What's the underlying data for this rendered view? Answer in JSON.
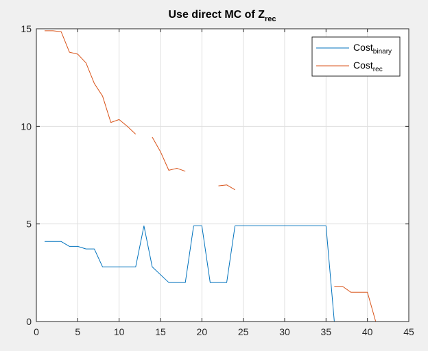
{
  "chart_data": {
    "type": "line",
    "title": {
      "main": "Use direct MC of Z",
      "subscript": "rec"
    },
    "xlabel": "",
    "ylabel": "",
    "xlim": [
      0,
      45
    ],
    "ylim": [
      0,
      15
    ],
    "xticks": [
      0,
      5,
      10,
      15,
      20,
      25,
      30,
      35,
      40,
      45
    ],
    "yticks": [
      0,
      5,
      10,
      15
    ],
    "grid": true,
    "legend": {
      "placement": "top-right",
      "entries": [
        {
          "base": "Cost",
          "subscript": "binary"
        },
        {
          "base": "Cost",
          "subscript": "rec"
        }
      ]
    },
    "series": [
      {
        "legend_index": 0,
        "color": "#0072BD",
        "points": [
          [
            1,
            4.1
          ],
          [
            2,
            4.1
          ],
          [
            3,
            4.1
          ],
          [
            4,
            3.85
          ],
          [
            5,
            3.85
          ],
          [
            6,
            3.72
          ],
          [
            7,
            3.72
          ],
          [
            8,
            2.8
          ],
          [
            9,
            2.8
          ],
          [
            10,
            2.8
          ],
          [
            11,
            2.8
          ],
          [
            12,
            2.8
          ],
          [
            13,
            4.9
          ],
          [
            14,
            2.8
          ],
          [
            15,
            2.4
          ],
          [
            16,
            2.0
          ],
          [
            17,
            2.0
          ],
          [
            18,
            2.0
          ],
          [
            19,
            4.9
          ],
          [
            20,
            4.9
          ],
          [
            21,
            2.0
          ],
          [
            22,
            2.0
          ],
          [
            23,
            2.0
          ],
          [
            24,
            4.9
          ],
          [
            25,
            4.9
          ],
          [
            26,
            4.9
          ],
          [
            27,
            4.9
          ],
          [
            28,
            4.9
          ],
          [
            29,
            4.9
          ],
          [
            30,
            4.9
          ],
          [
            31,
            4.9
          ],
          [
            32,
            4.9
          ],
          [
            33,
            4.9
          ],
          [
            34,
            4.9
          ],
          [
            35,
            4.9
          ],
          [
            36,
            0
          ],
          [
            37,
            0
          ],
          [
            38,
            0
          ],
          [
            39,
            0
          ],
          [
            40,
            0
          ],
          [
            41,
            0
          ],
          [
            42,
            0
          ]
        ]
      },
      {
        "legend_index": 1,
        "color": "#D95319",
        "points": [
          [
            1,
            14.9
          ],
          [
            2,
            14.9
          ],
          [
            3,
            14.85
          ],
          [
            4,
            13.8
          ],
          [
            5,
            13.7
          ],
          [
            6,
            13.25
          ],
          [
            7,
            12.2
          ],
          [
            8,
            11.55
          ],
          [
            9,
            10.2
          ],
          [
            10,
            10.35
          ],
          [
            11,
            10.0
          ],
          [
            12,
            9.6
          ],
          [
            13,
            null
          ],
          [
            14,
            9.45
          ],
          [
            15,
            8.7
          ],
          [
            16,
            7.75
          ],
          [
            17,
            7.85
          ],
          [
            18,
            7.7
          ],
          [
            19,
            null
          ],
          [
            20,
            null
          ],
          [
            21,
            null
          ],
          [
            22,
            6.95
          ],
          [
            23,
            7.0
          ],
          [
            24,
            6.75
          ],
          [
            25,
            null
          ],
          [
            26,
            null
          ],
          [
            27,
            null
          ],
          [
            28,
            null
          ],
          [
            29,
            null
          ],
          [
            30,
            null
          ],
          [
            31,
            null
          ],
          [
            32,
            null
          ],
          [
            33,
            null
          ],
          [
            34,
            null
          ],
          [
            35,
            null
          ],
          [
            36,
            1.8
          ],
          [
            37,
            1.8
          ],
          [
            38,
            1.5
          ],
          [
            39,
            1.5
          ],
          [
            40,
            1.5
          ],
          [
            41,
            0
          ],
          [
            42,
            0
          ]
        ]
      }
    ]
  }
}
